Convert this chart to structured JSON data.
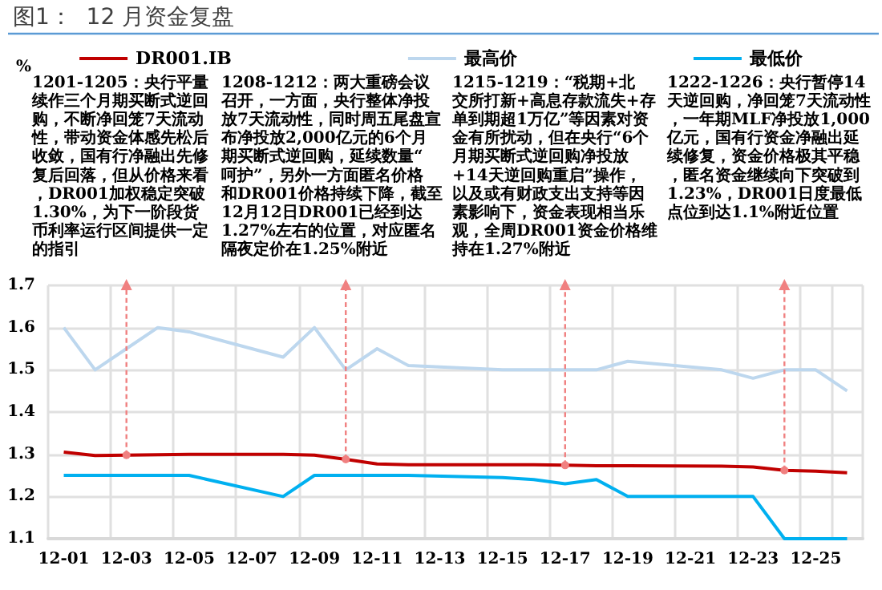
{
  "chart_data": {
    "type": "line",
    "title": "图1：  12 月资金复盘",
    "categories": [
      "12-01",
      null,
      "12-03",
      null,
      "12-05",
      null,
      "12-07",
      null,
      "12-09",
      null,
      "12-11",
      null,
      "12-13",
      null,
      "12-15",
      null,
      "12-17",
      null,
      "12-19",
      null,
      "12-21",
      null,
      "12-23",
      null,
      "12-25",
      null
    ],
    "series": [
      {
        "name": "DR001.IB",
        "color": "#c00000",
        "values": [
          1.305,
          1.297,
          1.298,
          1.299,
          1.3,
          null,
          null,
          1.3,
          1.298,
          1.288,
          1.277,
          1.275,
          null,
          null,
          1.275,
          1.275,
          1.274,
          1.273,
          1.273,
          null,
          null,
          1.272,
          1.27,
          1.262,
          1.26,
          1.256
        ]
      },
      {
        "name": "最高价",
        "color": "#bdd7ee",
        "values": [
          1.6,
          1.5,
          1.55,
          1.6,
          1.59,
          null,
          null,
          1.53,
          1.6,
          1.5,
          1.55,
          1.51,
          null,
          null,
          1.5,
          1.5,
          1.5,
          1.5,
          1.52,
          null,
          null,
          1.5,
          1.48,
          1.5,
          1.5,
          1.45
        ]
      },
      {
        "name": "最低价",
        "color": "#00b0f0",
        "values": [
          1.25,
          1.25,
          1.25,
          1.25,
          1.25,
          null,
          null,
          1.2,
          1.25,
          1.25,
          1.25,
          1.25,
          null,
          null,
          1.245,
          1.24,
          1.23,
          1.24,
          1.2,
          null,
          null,
          1.2,
          1.2,
          1.1,
          1.1,
          1.1
        ]
      }
    ],
    "ylim": [
      1.1,
      1.7
    ],
    "yticks": [
      1.1,
      1.2,
      1.3,
      1.4,
      1.5,
      1.6,
      1.7
    ],
    "grid": true,
    "legend": "top",
    "marker": "none",
    "annotations": [
      "%",
      "1201-1205：央行平量续作三个月期买断式逆回购，不断净回笼7天流动性，带动资金体感先松后收敛，国有行净融出先修复后回落，但从价格来看，DR001加权稳定突破1.30%，为下一阶段货币利率运行区间提供一定的指引",
      "1208-1212：两大重磅会议召开，一方面，央行整体净投放7天流动性，同时周五尾盘宣布净投放2,000亿元的6个月期买断式逆回购，延续数量“呵护”，另外一方面匿名价格和DR001价格持续下降，截至12月12日DR001已经到达1.27%左右的位置，对应匿名隔夜定价在1.25%附近",
      "1215-1219：“税期+北交所打新+高息存款流失+存单到期超1万亿”等因素对资金有所扰动，但在央行“6个月期买断式逆回购净投放+14天逆回购重启”操作，以及或有财政支出支持等因素影响下，资金表现相当乐观，全周DR001资金价格维持在1.27%附近",
      "1222-1226：央行暂停14天逆回购，净回笼7天流动性，一年期MLF净投放1,000亿元，国有行资金净融出延续修复，资金价格极其平稳，匿名资金继续向下突破到1.23%，DR001日度最低点位到达1.1%附近位置"
    ]
  }
}
